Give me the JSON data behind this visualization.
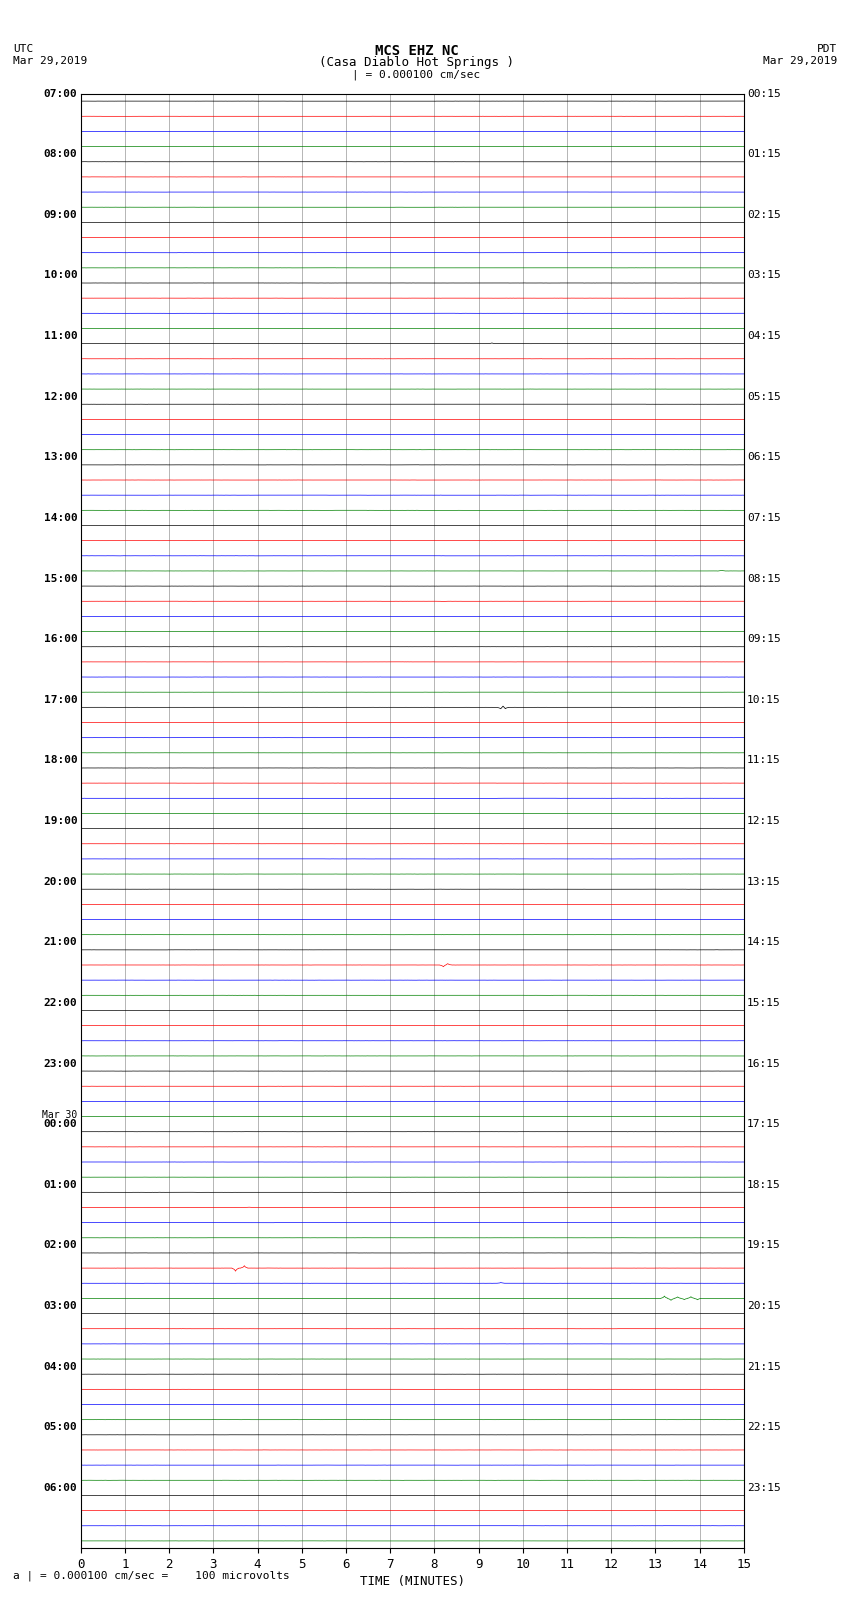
{
  "title_line1": "MCS EHZ NC",
  "title_line2": "(Casa Diablo Hot Springs )",
  "scale_label": "| = 0.000100 cm/sec",
  "utc_label": "UTC",
  "utc_date": "Mar 29,2019",
  "pdt_label": "PDT",
  "pdt_date": "Mar 29,2019",
  "xlabel": "TIME (MINUTES)",
  "x_ticks": [
    0,
    1,
    2,
    3,
    4,
    5,
    6,
    7,
    8,
    9,
    10,
    11,
    12,
    13,
    14,
    15
  ],
  "bg_color": "#ffffff",
  "trace_colors": [
    "black",
    "red",
    "blue",
    "green"
  ],
  "left_times": [
    "07:00",
    "08:00",
    "09:00",
    "10:00",
    "11:00",
    "12:00",
    "13:00",
    "14:00",
    "15:00",
    "16:00",
    "17:00",
    "18:00",
    "19:00",
    "20:00",
    "21:00",
    "22:00",
    "23:00",
    "Mar 30\n00:00",
    "01:00",
    "02:00",
    "03:00",
    "04:00",
    "05:00",
    "06:00"
  ],
  "right_times": [
    "00:15",
    "01:15",
    "02:15",
    "03:15",
    "04:15",
    "05:15",
    "06:15",
    "07:15",
    "08:15",
    "09:15",
    "10:15",
    "11:15",
    "12:15",
    "13:15",
    "14:15",
    "15:15",
    "16:15",
    "17:15",
    "18:15",
    "19:15",
    "20:15",
    "21:15",
    "22:15",
    "23:15"
  ],
  "n_rows": 24,
  "n_traces_per_row": 4,
  "noise_amplitude": 0.006,
  "x_min": 0,
  "x_max": 15,
  "sample_rate": 200,
  "spike_events": [
    {
      "row": 4,
      "trace": 0,
      "minute": 9.3,
      "amplitude": 0.1
    },
    {
      "row": 7,
      "trace": 3,
      "minute": 14.5,
      "amplitude": 0.08
    },
    {
      "row": 8,
      "trace": 1,
      "minute": 8.2,
      "amplitude": -0.07
    },
    {
      "row": 10,
      "trace": 0,
      "minute": 9.5,
      "amplitude": -0.28
    },
    {
      "row": 10,
      "trace": 0,
      "minute": 9.55,
      "amplitude": 0.3
    },
    {
      "row": 10,
      "trace": 0,
      "minute": 9.6,
      "amplitude": -0.25
    },
    {
      "row": 14,
      "trace": 1,
      "minute": 8.2,
      "amplitude": -0.25
    },
    {
      "row": 14,
      "trace": 1,
      "minute": 8.3,
      "amplitude": 0.2
    },
    {
      "row": 18,
      "trace": 1,
      "minute": 3.8,
      "amplitude": 0.06
    },
    {
      "row": 19,
      "trace": 1,
      "minute": 3.5,
      "amplitude": -0.45
    },
    {
      "row": 19,
      "trace": 1,
      "minute": 3.7,
      "amplitude": 0.35
    },
    {
      "row": 19,
      "trace": 2,
      "minute": 9.5,
      "amplitude": 0.1
    },
    {
      "row": 19,
      "trace": 3,
      "minute": 13.2,
      "amplitude": 0.35
    },
    {
      "row": 19,
      "trace": 3,
      "minute": 13.35,
      "amplitude": -0.28
    },
    {
      "row": 19,
      "trace": 3,
      "minute": 13.5,
      "amplitude": 0.22
    },
    {
      "row": 19,
      "trace": 3,
      "minute": 13.65,
      "amplitude": -0.18
    },
    {
      "row": 19,
      "trace": 3,
      "minute": 13.8,
      "amplitude": 0.25
    },
    {
      "row": 19,
      "trace": 3,
      "minute": 13.95,
      "amplitude": -0.2
    }
  ],
  "footer_text": "a | = 0.000100 cm/sec =    100 microvolts"
}
